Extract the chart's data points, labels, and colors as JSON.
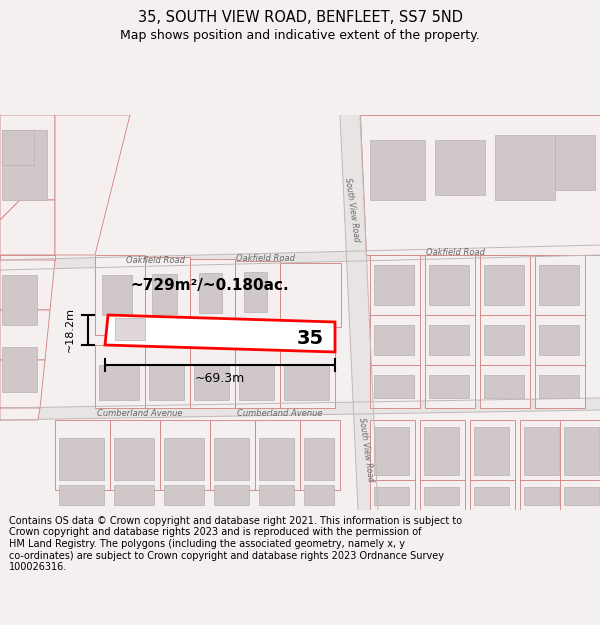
{
  "title": "35, SOUTH VIEW ROAD, BENFLEET, SS7 5ND",
  "subtitle": "Map shows position and indicative extent of the property.",
  "footer": "Contains OS data © Crown copyright and database right 2021. This information is subject to\nCrown copyright and database rights 2023 and is reproduced with the permission of\nHM Land Registry. The polygons (including the associated geometry, namely x, y\nco-ordinates) are subject to Crown copyright and database rights 2023 Ordnance Survey\n100026316.",
  "area_text": "~729m²/~0.180ac.",
  "width_text": "~69.3m",
  "height_text": "~18.2m",
  "property_number": "35",
  "bg_color": "#f5f0f0",
  "map_bg": "#ffffff",
  "parcel_fill": "#f0e8e8",
  "building_fill": "#d0c8c8",
  "building_edge": "#b8b0b0",
  "parcel_edge": "#d08080",
  "highlight_color": "#ff0000",
  "road_fill": "#e8e0e0",
  "road_label_color": "#666666",
  "title_fontsize": 10.5,
  "subtitle_fontsize": 9,
  "footer_fontsize": 7
}
